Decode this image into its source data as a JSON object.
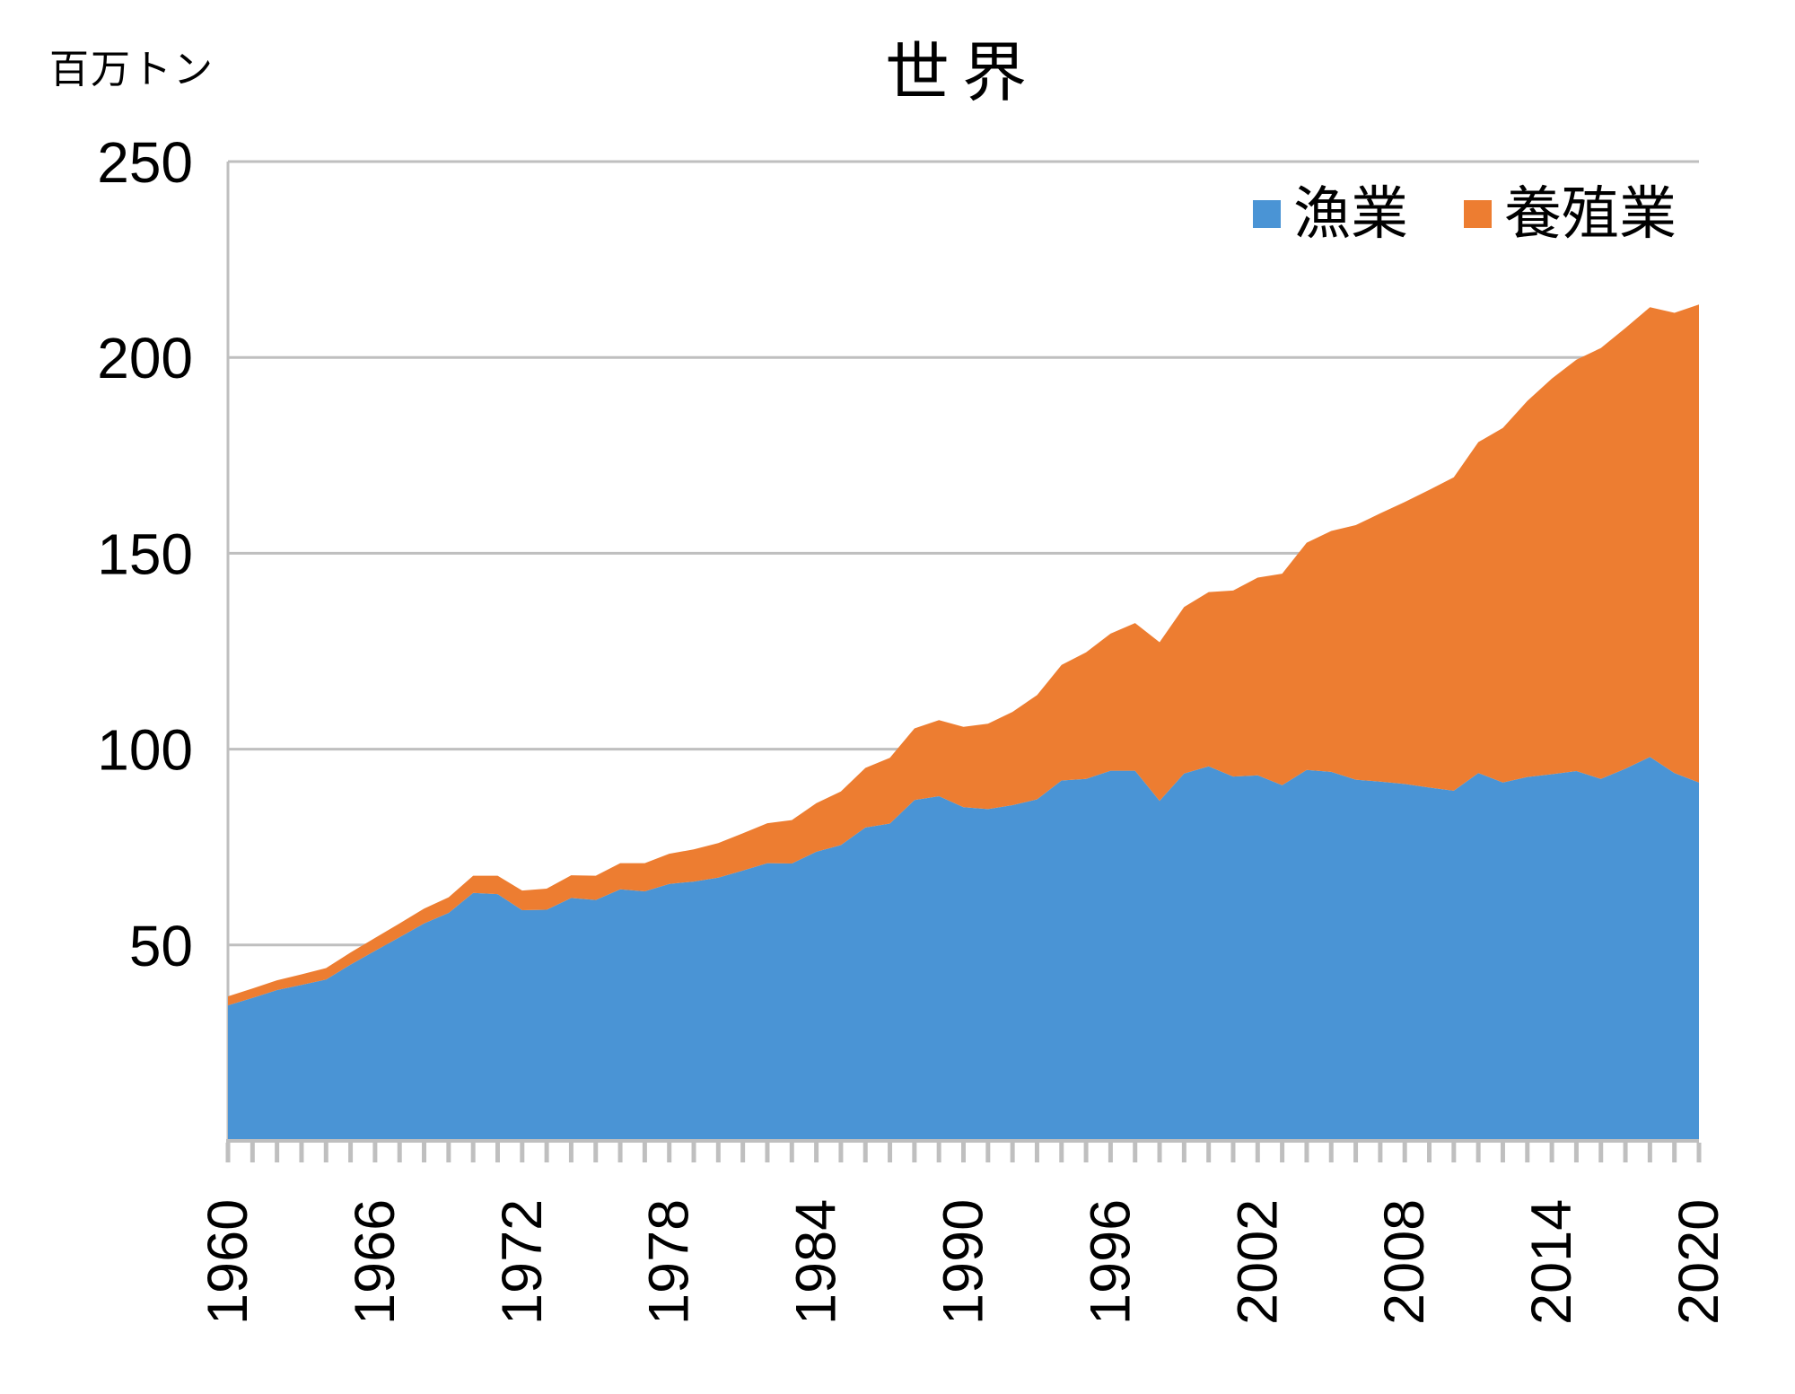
{
  "title": "世界",
  "y_axis": {
    "unit_label": "百万トン",
    "tick_labels": [
      "250",
      "200",
      "150",
      "100",
      "50"
    ],
    "min": 0,
    "max": 250,
    "gridline_step": 50
  },
  "x_axis": {
    "labeled_years": [
      1960,
      1966,
      1972,
      1978,
      1984,
      1990,
      1996,
      2002,
      2008,
      2014,
      2020
    ],
    "minor_tick_interval": 1,
    "min": 1960,
    "max": 2020
  },
  "legend": {
    "items": [
      {
        "label": "漁業",
        "color": "#4A94D5"
      },
      {
        "label": "養殖業",
        "color": "#ED7D31"
      }
    ]
  },
  "colors": {
    "fishery_area": "#4A94D5",
    "aquaculture_area": "#ED7D31",
    "gridline": "#BFBFBF",
    "axis": "#BFBFBF",
    "text": "#000000",
    "background": "#FFFFFF"
  },
  "chart_data": {
    "type": "area",
    "stacked": true,
    "title": "世界",
    "ylabel": "百万トン",
    "ylim": [
      0,
      250
    ],
    "x_range": [
      1960,
      2020
    ],
    "grid": true,
    "legend_position": "top-right",
    "x": [
      1960,
      1961,
      1962,
      1963,
      1964,
      1965,
      1966,
      1967,
      1968,
      1969,
      1970,
      1971,
      1972,
      1973,
      1974,
      1975,
      1976,
      1977,
      1978,
      1979,
      1980,
      1981,
      1982,
      1983,
      1984,
      1985,
      1986,
      1987,
      1988,
      1989,
      1990,
      1991,
      1992,
      1993,
      1994,
      1995,
      1996,
      1997,
      1998,
      1999,
      2000,
      2001,
      2002,
      2003,
      2004,
      2005,
      2006,
      2007,
      2008,
      2009,
      2010,
      2011,
      2012,
      2013,
      2014,
      2015,
      2016,
      2017,
      2018,
      2019,
      2020
    ],
    "series": [
      {
        "name": "漁業",
        "color": "#4A94D5",
        "values": [
          34.6,
          36.5,
          38.5,
          39.8,
          41.2,
          45.0,
          48.5,
          52.0,
          55.5,
          58.2,
          63.3,
          63.0,
          58.9,
          59.0,
          62.0,
          61.5,
          64.2,
          63.7,
          65.6,
          66.2,
          67.2,
          69.0,
          70.9,
          70.8,
          73.8,
          75.5,
          80.0,
          81.0,
          87.0,
          88.0,
          85.2,
          84.7,
          85.7,
          87.2,
          92.0,
          92.4,
          94.5,
          94.5,
          86.8,
          93.8,
          95.6,
          93.0,
          93.3,
          90.8,
          94.7,
          94.2,
          92.2,
          91.7,
          91.1,
          90.2,
          89.4,
          93.9,
          91.5,
          92.9,
          93.6,
          94.4,
          92.4,
          95.0,
          98.0,
          93.9,
          91.5
        ]
      },
      {
        "name": "養殖業",
        "color": "#ED7D31",
        "values": [
          2.3,
          2.4,
          2.5,
          2.7,
          2.9,
          3.1,
          3.3,
          3.5,
          3.8,
          4.0,
          4.4,
          4.7,
          5.0,
          5.4,
          5.8,
          6.2,
          6.7,
          7.2,
          7.7,
          8.2,
          8.8,
          9.5,
          10.2,
          11.1,
          12.4,
          13.7,
          15.2,
          16.8,
          18.3,
          19.4,
          20.5,
          21.8,
          23.8,
          26.6,
          29.5,
          32.3,
          35.0,
          37.7,
          40.5,
          42.5,
          44.5,
          47.5,
          50.5,
          54.0,
          58.0,
          61.5,
          65.0,
          68.5,
          72.0,
          76.0,
          80.0,
          84.5,
          90.5,
          96.0,
          101.0,
          105.0,
          110.0,
          112.5,
          114.8,
          117.5,
          122.0
        ]
      }
    ]
  }
}
